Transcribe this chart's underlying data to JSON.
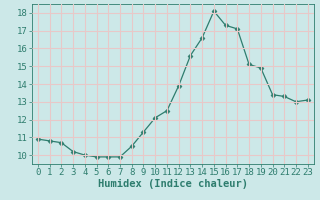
{
  "title": "",
  "xlabel": "Humidex (Indice chaleur)",
  "x": [
    0,
    1,
    2,
    3,
    4,
    5,
    6,
    7,
    8,
    9,
    10,
    11,
    12,
    13,
    14,
    15,
    16,
    17,
    18,
    19,
    20,
    21,
    22,
    23
  ],
  "y": [
    10.9,
    10.8,
    10.7,
    10.2,
    10.0,
    9.9,
    9.9,
    9.9,
    10.5,
    11.3,
    12.1,
    12.5,
    13.9,
    15.6,
    16.6,
    18.1,
    17.3,
    17.1,
    15.1,
    14.9,
    13.4,
    13.3,
    13.0,
    13.1
  ],
  "line_color": "#2e7d6e",
  "marker": "D",
  "marker_size": 2.5,
  "bg_color": "#cce8e8",
  "grid_color": "#e8c8c8",
  "ylim": [
    9.5,
    18.5
  ],
  "yticks": [
    10,
    11,
    12,
    13,
    14,
    15,
    16,
    17,
    18
  ],
  "xticks": [
    0,
    1,
    2,
    3,
    4,
    5,
    6,
    7,
    8,
    9,
    10,
    11,
    12,
    13,
    14,
    15,
    16,
    17,
    18,
    19,
    20,
    21,
    22,
    23
  ],
  "tick_fontsize": 6.5,
  "xlabel_fontsize": 7.5
}
